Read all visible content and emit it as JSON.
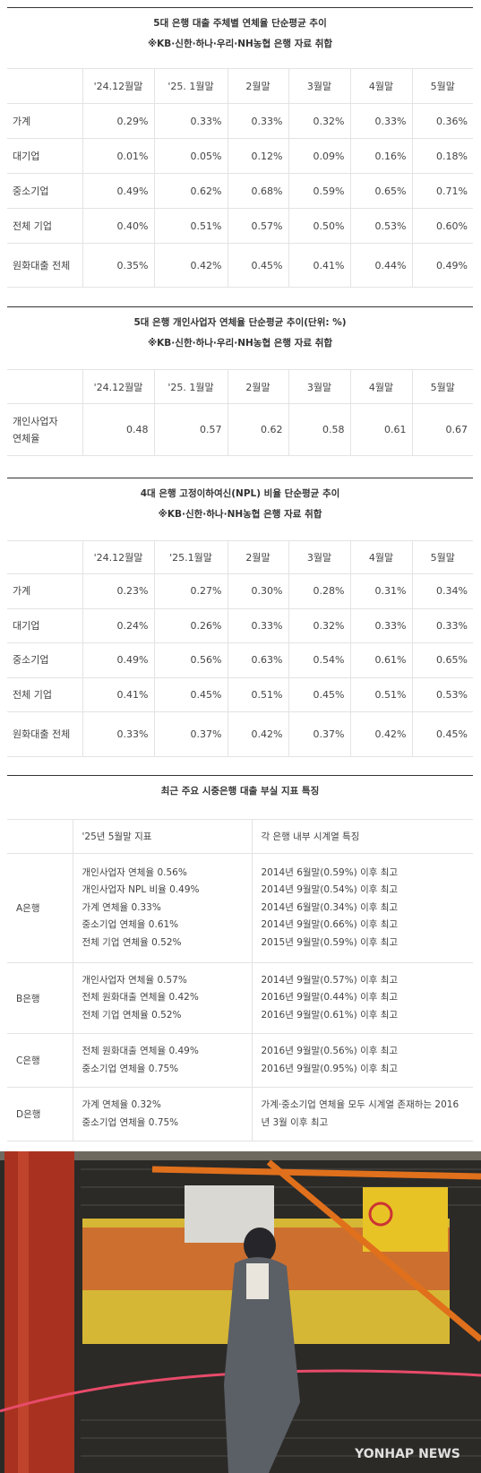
{
  "tables": [
    {
      "title": "5대 은행 대출 주체별 연체율 단순평균 추이",
      "subtitle": "※KB·신한·하나·우리·NH농협 은행 자료 취합",
      "header": [
        "",
        "'24.12월말",
        "'25. 1월말",
        "2월말",
        "3월말",
        "4월말",
        "5월말"
      ],
      "rows": [
        [
          "가계",
          "0.29%",
          "0.33%",
          "0.33%",
          "0.32%",
          "0.33%",
          "0.36%"
        ],
        [
          "대기업",
          "0.01%",
          "0.05%",
          "0.12%",
          "0.09%",
          "0.16%",
          "0.18%"
        ],
        [
          "중소기업",
          "0.49%",
          "0.62%",
          "0.68%",
          "0.59%",
          "0.65%",
          "0.71%"
        ],
        [
          "전체 기업",
          "0.40%",
          "0.51%",
          "0.57%",
          "0.50%",
          "0.53%",
          "0.60%"
        ],
        [
          "원화대출 전체",
          "0.35%",
          "0.42%",
          "0.45%",
          "0.41%",
          "0.44%",
          "0.49%"
        ]
      ]
    },
    {
      "title": "5대 은행 개인사업자 연체율 단순평균 추이(단위: %)",
      "subtitle": "※KB·신한·하나·우리·NH농협 은행 자료 취합",
      "header": [
        "",
        "'24.12월말",
        "'25. 1월말",
        "2월말",
        "3월말",
        "4월말",
        "5월말"
      ],
      "rows": [
        [
          "개인사업자\n연체율",
          "0.48",
          "0.57",
          "0.62",
          "0.58",
          "0.61",
          "0.67"
        ]
      ]
    },
    {
      "title": "4대 은행 고정이하여신(NPL) 비율 단순평균 추이",
      "subtitle": "※KB·신한·하나·NH농협 은행 자료 취합",
      "header": [
        "",
        "'24.12월말",
        "'25.1월말",
        "2월말",
        "3월말",
        "4월말",
        "5월말"
      ],
      "rows": [
        [
          "가계",
          "0.23%",
          "0.27%",
          "0.30%",
          "0.28%",
          "0.31%",
          "0.34%"
        ],
        [
          "대기업",
          "0.24%",
          "0.26%",
          "0.33%",
          "0.32%",
          "0.33%",
          "0.33%"
        ],
        [
          "중소기업",
          "0.49%",
          "0.56%",
          "0.63%",
          "0.54%",
          "0.61%",
          "0.65%"
        ],
        [
          "전체 기업",
          "0.41%",
          "0.45%",
          "0.51%",
          "0.45%",
          "0.51%",
          "0.53%"
        ],
        [
          "원화대출 전체",
          "0.33%",
          "0.37%",
          "0.42%",
          "0.37%",
          "0.42%",
          "0.45%"
        ]
      ]
    }
  ],
  "summary": {
    "title": "최근 주요 시중은행 대출 부실 지표 특징",
    "header": [
      "",
      "'25년 5월말 지표",
      "각 은행 내부 시계열 특징"
    ],
    "rows": [
      [
        "A은행",
        [
          "개인사업자 연체율 0.56%",
          "개인사업자 NPL 비율 0.49%",
          "가계 연체율 0.33%",
          "중소기업 연체율 0.61%",
          "전체 기업 연체율 0.52%"
        ],
        [
          "2014년 6월말(0.59%) 이후 최고",
          "2014년 9월말(0.54%) 이후 최고",
          "2014년 6월말(0.34%) 이후 최고",
          "2014년 9월말(0.66%) 이후 최고",
          "2015년 9월말(0.59%) 이후 최고"
        ]
      ],
      [
        "B은행",
        [
          "개인사업자 연체율 0.57%",
          "전체 원화대출 연체율 0.42%",
          "전체 기업 연체율 0.52%"
        ],
        [
          "2014년 9월말(0.57%) 이후 최고",
          "2016년 9월말(0.44%) 이후 최고",
          "2016년 9월말(0.61%) 이후 최고"
        ]
      ],
      [
        "C은행",
        [
          "전체 원화대출 연체율 0.49%",
          "중소기업 연체율 0.75%"
        ],
        [
          "2016년 9월말(0.56%) 이후 최고",
          "2016년 9월말(0.95%) 이후 최고"
        ]
      ],
      [
        "D은행",
        [
          "가계 연체율 0.32%",
          "중소기업 연체율 0.75%"
        ],
        [
          "가계·중소기업 연체율 모두 시계열 존재하는 2016년 3월 이후 최고"
        ]
      ]
    ]
  },
  "photo": {
    "watermark": "YONHAP NEWS"
  }
}
